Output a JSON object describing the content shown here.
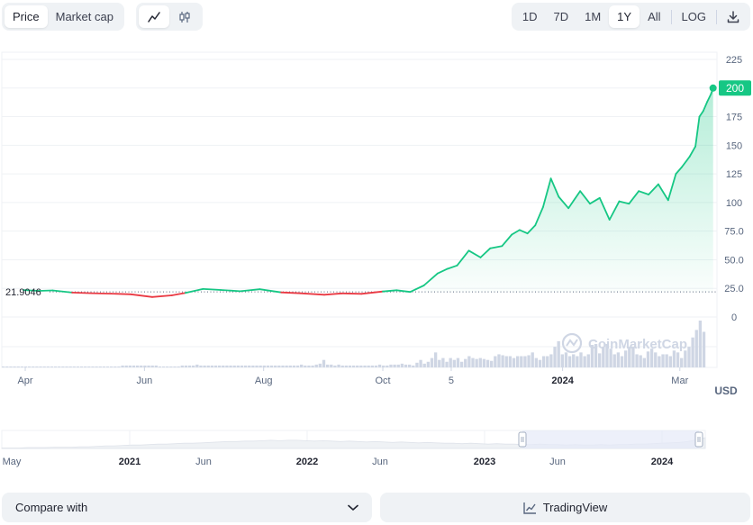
{
  "toolbar": {
    "metric_tabs": [
      {
        "label": "Price",
        "active": true
      },
      {
        "label": "Market cap",
        "active": false
      }
    ],
    "chart_types": [
      {
        "icon": "line-chart-icon",
        "active": true
      },
      {
        "icon": "candlestick-icon",
        "active": false
      }
    ],
    "ranges": [
      {
        "label": "1D",
        "active": false
      },
      {
        "label": "7D",
        "active": false
      },
      {
        "label": "1M",
        "active": false
      },
      {
        "label": "1Y",
        "active": true
      },
      {
        "label": "All",
        "active": false
      }
    ],
    "log_label": "LOG",
    "download_icon": "download-icon"
  },
  "chart_data": {
    "type": "line",
    "currency_label": "USD",
    "baseline_value": 21.9046,
    "baseline_label": "21.9046",
    "current_value": 200,
    "current_label": "200",
    "ylim": [
      0,
      225
    ],
    "y_ticks": [
      {
        "value": 225,
        "label": "225"
      },
      {
        "value": 200,
        "label": "200"
      },
      {
        "value": 175,
        "label": "175"
      },
      {
        "value": 150,
        "label": "150"
      },
      {
        "value": 125,
        "label": "125"
      },
      {
        "value": 100,
        "label": "100"
      },
      {
        "value": 75,
        "label": "75.0"
      },
      {
        "value": 50,
        "label": "50.0"
      },
      {
        "value": 25,
        "label": "25.0"
      },
      {
        "value": 0,
        "label": "0"
      }
    ],
    "x_ticks": [
      {
        "date": "2023-04-01",
        "label": "Apr",
        "bold": false
      },
      {
        "date": "2023-06-01",
        "label": "Jun",
        "bold": false
      },
      {
        "date": "2023-08-01",
        "label": "Aug",
        "bold": false
      },
      {
        "date": "2023-10-01",
        "label": "Oct",
        "bold": false
      },
      {
        "date": "2023-11-05",
        "label": "5",
        "bold": false
      },
      {
        "date": "2024-01-01",
        "label": "2024",
        "bold": true
      },
      {
        "date": "2024-03-01",
        "label": "Mar",
        "bold": false
      }
    ],
    "x_range": [
      "2023-03-20",
      "2024-03-20"
    ],
    "series": [
      {
        "x": [
          "2023-03-31",
          "2023-04-08",
          "2023-04-15",
          "2023-04-25",
          "2023-05-05",
          "2023-05-15",
          "2023-05-25",
          "2023-06-05",
          "2023-06-15",
          "2023-06-22",
          "2023-07-01",
          "2023-07-10",
          "2023-07-20",
          "2023-07-30",
          "2023-08-10",
          "2023-08-20",
          "2023-09-01",
          "2023-09-10",
          "2023-09-20",
          "2023-10-01",
          "2023-10-08",
          "2023-10-15",
          "2023-10-22",
          "2023-10-29",
          "2023-11-03",
          "2023-11-08",
          "2023-11-14",
          "2023-11-20",
          "2023-11-25",
          "2023-12-01",
          "2023-12-06",
          "2023-12-10",
          "2023-12-14",
          "2023-12-18",
          "2023-12-22",
          "2023-12-26",
          "2023-12-30",
          "2024-01-04",
          "2024-01-10",
          "2024-01-15",
          "2024-01-20",
          "2024-01-25",
          "2024-01-30",
          "2024-02-04",
          "2024-02-09",
          "2024-02-14",
          "2024-02-19",
          "2024-02-24",
          "2024-02-28",
          "2024-03-02",
          "2024-03-06",
          "2024-03-09",
          "2024-03-11",
          "2024-03-13",
          "2024-03-15",
          "2024-03-17",
          "2024-03-18"
        ],
        "values": [
          23.5,
          22.8,
          23.2,
          21.3,
          20.8,
          20.4,
          19.8,
          17.5,
          18.9,
          21.0,
          24.5,
          23.6,
          22.5,
          24.2,
          21.5,
          20.7,
          19.4,
          20.6,
          20.2,
          22.3,
          23.4,
          21.9,
          27.5,
          38.0,
          42.0,
          45.0,
          58.0,
          52.0,
          60.0,
          62.0,
          72.0,
          76.0,
          73.0,
          80.0,
          96.0,
          121.0,
          105.0,
          95.0,
          110.0,
          99.0,
          104.0,
          85.0,
          101.0,
          99.0,
          110.0,
          107.0,
          116.0,
          102.0,
          125.0,
          131.0,
          140.0,
          149.0,
          175.0,
          180.0,
          188.0,
          195.0,
          200.0
        ]
      }
    ],
    "volume": [
      1,
      1,
      1,
      1,
      1,
      1,
      1,
      1,
      1,
      1,
      1,
      1,
      1,
      1,
      1,
      1,
      1,
      1,
      1,
      1,
      1,
      1,
      1,
      1,
      1,
      1,
      1,
      1,
      1,
      1,
      1,
      1,
      2,
      2,
      2,
      2,
      2,
      2,
      2,
      2,
      2,
      2,
      1,
      1,
      1,
      1,
      1,
      1,
      2,
      2,
      2,
      2,
      3,
      2,
      2,
      2,
      2,
      2,
      2,
      2,
      2,
      2,
      2,
      2,
      2,
      2,
      2,
      2,
      2,
      2,
      2,
      2,
      2,
      2,
      2,
      2,
      2,
      2,
      2,
      2,
      3,
      2,
      2,
      2,
      3,
      4,
      8,
      3,
      3,
      2,
      3,
      2,
      2,
      2,
      2,
      2,
      2,
      2,
      2,
      2,
      2,
      3,
      2,
      2,
      3,
      3,
      3,
      4,
      3,
      3,
      2,
      5,
      8,
      4,
      6,
      10,
      16,
      8,
      10,
      6,
      10,
      8,
      10,
      6,
      9,
      12,
      10,
      9,
      10,
      9,
      8,
      7,
      12,
      14,
      13,
      12,
      12,
      10,
      12,
      12,
      12,
      13,
      16,
      10,
      8,
      12,
      12,
      14,
      22,
      28,
      14,
      16,
      12,
      14,
      12,
      16,
      12,
      14,
      24,
      25,
      15,
      22,
      25,
      20,
      14,
      16,
      12,
      18,
      22,
      22,
      14,
      13,
      10,
      17,
      20,
      16,
      12,
      14,
      14,
      12,
      18,
      16,
      10,
      18,
      22,
      32,
      40,
      50,
      38
    ],
    "watermark": "CoinMarketCap",
    "navigator": {
      "x_ticks": [
        {
          "label": "May",
          "bold": false
        },
        {
          "label": "2021",
          "bold": true
        },
        {
          "label": "Jun",
          "bold": false
        },
        {
          "label": "2022",
          "bold": true
        },
        {
          "label": "Jun",
          "bold": false
        },
        {
          "label": "2023",
          "bold": true
        },
        {
          "label": "Jun",
          "bold": false
        },
        {
          "label": "2024",
          "bold": true
        }
      ],
      "history_values": [
        1,
        1,
        1,
        2,
        2,
        2,
        3,
        3,
        3,
        4,
        4,
        5,
        6,
        6,
        7,
        8,
        8,
        9,
        10,
        10,
        11,
        12,
        12,
        13,
        14,
        15,
        16,
        16,
        17,
        17,
        18,
        19,
        18,
        19,
        19,
        18,
        17,
        18,
        17,
        16,
        17,
        16,
        15,
        16,
        15,
        14,
        15,
        14,
        13,
        14,
        13,
        12,
        12,
        11,
        12,
        11,
        10,
        11,
        10,
        10,
        9,
        9,
        10,
        9,
        9,
        8,
        9,
        8,
        8,
        9,
        8,
        9,
        9,
        10,
        10,
        11,
        12,
        13,
        14,
        16,
        20,
        25
      ]
    },
    "colors": {
      "up": "#16c784",
      "down": "#ea3943",
      "fill_top": "#16c784",
      "axis_label": "#58667e",
      "grid": "#eff2f5",
      "navigator_window": "#e6e9f8"
    }
  },
  "footer": {
    "compare_label": "Compare with",
    "tradingview_label": "TradingView"
  }
}
